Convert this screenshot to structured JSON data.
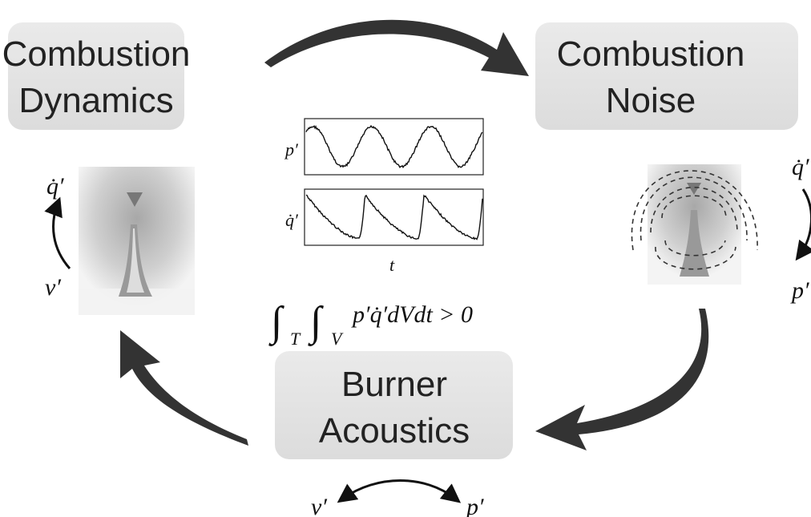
{
  "nodes": [
    {
      "label": [
        "Combustion",
        "Dynamics"
      ]
    },
    {
      "label": [
        "Combustion",
        "Noise"
      ]
    },
    {
      "label": [
        "Burner",
        "Acoustics"
      ]
    }
  ],
  "plots": {
    "top_label": "p′",
    "bottom_label": "q̇′",
    "x_label": "t"
  },
  "equation": {
    "int1": "∫",
    "sub1": "T",
    "int2": "∫",
    "sub2": "V",
    "body": "p′q̇′dVdt > 0"
  },
  "flame_left": {
    "top": "q̇′",
    "bottom": "v′"
  },
  "flame_right": {
    "top": "q̇′",
    "bottom": "p′"
  },
  "acoustics": {
    "left": "v′",
    "right": "p′"
  }
}
